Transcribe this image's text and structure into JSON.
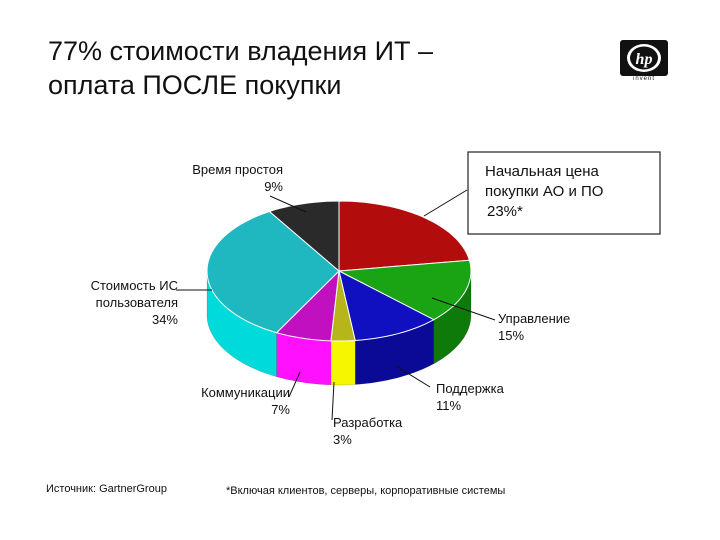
{
  "slide": {
    "title_line1": "77% стоимости владения ИТ –",
    "title_line2": "оплата ПОСЛЕ покупки",
    "logo_text": "hp",
    "logo_tagline": "invent",
    "source_label": "Источник:",
    "source_value": "GartnerGroup",
    "footnote": "*Включая клиентов, серверы, корпоративные системы"
  },
  "chart_data": {
    "type": "pie",
    "title": "",
    "style": "3d",
    "slices": [
      {
        "label": "Начальная цена покупки АО и ПО",
        "value": 23,
        "value_label": "23%*",
        "color": "#b30c0c",
        "boxed": true
      },
      {
        "label": "Управление",
        "value": 15,
        "value_label": "15%",
        "color": "#1aa312"
      },
      {
        "label": "Поддержка",
        "value": 11,
        "value_label": "11%",
        "color": "#1010c0"
      },
      {
        "label": "Разработка",
        "value": 3,
        "value_label": "3%",
        "color": "#b6b61a"
      },
      {
        "label": "Коммуникации",
        "value": 7,
        "value_label": "7%",
        "color": "#c010c0"
      },
      {
        "label": "Стоимость ИС пользователя",
        "value": 34,
        "value_label": "34%",
        "color": "#20b8c0"
      },
      {
        "label": "Время простоя",
        "value": 9,
        "value_label": "9%",
        "color": "#2a2a2a"
      }
    ],
    "side_colors": [
      "#7a0808",
      "#0e7a0a",
      "#0a0a96",
      "#f6f600",
      "#ff10ff",
      "#00dada",
      "#111111"
    ]
  }
}
